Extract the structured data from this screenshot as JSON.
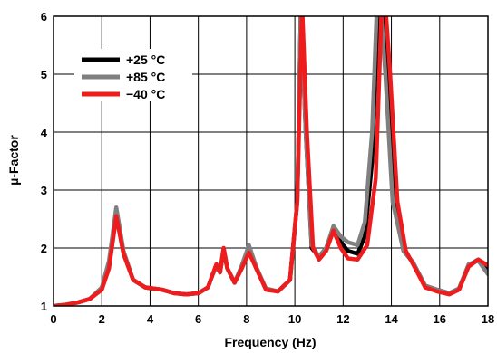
{
  "chart_data": {
    "type": "line",
    "title": "",
    "xlabel": "Frequency (Hz)",
    "ylabel": "µ-Factor",
    "xlim": [
      0,
      18
    ],
    "ylim": [
      1,
      6
    ],
    "xticks": [
      0,
      2,
      4,
      6,
      8,
      10,
      12,
      14,
      16,
      18
    ],
    "yticks": [
      1,
      2,
      3,
      4,
      5,
      6
    ],
    "xtick_labels": [
      "0",
      "2",
      "4",
      "6",
      "8",
      "10",
      "12",
      "14",
      "16",
      "18"
    ],
    "ytick_labels": [
      "1",
      "2",
      "3",
      "4",
      "5",
      "6"
    ],
    "grid": true,
    "legend_position": "top-left",
    "series": [
      {
        "name": "+25 °C",
        "color": "#000000",
        "points": [
          [
            0,
            1.0
          ],
          [
            0.5,
            1.02
          ],
          [
            1.0,
            1.06
          ],
          [
            1.5,
            1.12
          ],
          [
            2.0,
            1.3
          ],
          [
            2.3,
            1.7
          ],
          [
            2.6,
            2.6
          ],
          [
            2.9,
            1.9
          ],
          [
            3.3,
            1.45
          ],
          [
            3.8,
            1.32
          ],
          [
            4.5,
            1.28
          ],
          [
            5.0,
            1.22
          ],
          [
            5.5,
            1.2
          ],
          [
            6.0,
            1.22
          ],
          [
            6.4,
            1.32
          ],
          [
            6.6,
            1.55
          ],
          [
            6.75,
            1.68
          ],
          [
            6.9,
            1.58
          ],
          [
            7.05,
            1.95
          ],
          [
            7.2,
            1.65
          ],
          [
            7.5,
            1.4
          ],
          [
            7.8,
            1.65
          ],
          [
            8.1,
            1.98
          ],
          [
            8.4,
            1.65
          ],
          [
            8.8,
            1.3
          ],
          [
            9.3,
            1.25
          ],
          [
            9.8,
            1.45
          ],
          [
            10.1,
            2.8
          ],
          [
            10.25,
            6.2
          ],
          [
            10.45,
            4.0
          ],
          [
            10.7,
            2.0
          ],
          [
            11.0,
            1.85
          ],
          [
            11.3,
            2.0
          ],
          [
            11.6,
            2.35
          ],
          [
            11.9,
            2.1
          ],
          [
            12.2,
            1.95
          ],
          [
            12.6,
            1.9
          ],
          [
            12.9,
            2.2
          ],
          [
            13.2,
            3.5
          ],
          [
            13.45,
            6.2
          ],
          [
            13.6,
            6.2
          ],
          [
            13.8,
            5.0
          ],
          [
            14.1,
            2.8
          ],
          [
            14.5,
            1.95
          ],
          [
            14.9,
            1.75
          ],
          [
            15.4,
            1.35
          ],
          [
            15.9,
            1.28
          ],
          [
            16.4,
            1.22
          ],
          [
            16.8,
            1.3
          ],
          [
            17.2,
            1.7
          ],
          [
            17.6,
            1.8
          ],
          [
            18.0,
            1.62
          ]
        ]
      },
      {
        "name": "+85 °C",
        "color": "#808080",
        "points": [
          [
            0,
            1.0
          ],
          [
            0.5,
            1.02
          ],
          [
            1.0,
            1.06
          ],
          [
            1.5,
            1.12
          ],
          [
            2.0,
            1.32
          ],
          [
            2.3,
            1.78
          ],
          [
            2.6,
            2.7
          ],
          [
            2.9,
            1.95
          ],
          [
            3.3,
            1.45
          ],
          [
            3.8,
            1.32
          ],
          [
            4.5,
            1.28
          ],
          [
            5.0,
            1.22
          ],
          [
            5.5,
            1.2
          ],
          [
            6.0,
            1.22
          ],
          [
            6.4,
            1.32
          ],
          [
            6.6,
            1.55
          ],
          [
            6.75,
            1.68
          ],
          [
            6.9,
            1.58
          ],
          [
            7.05,
            2.0
          ],
          [
            7.2,
            1.65
          ],
          [
            7.5,
            1.4
          ],
          [
            7.8,
            1.7
          ],
          [
            8.1,
            2.05
          ],
          [
            8.4,
            1.68
          ],
          [
            8.8,
            1.3
          ],
          [
            9.3,
            1.25
          ],
          [
            9.8,
            1.45
          ],
          [
            10.1,
            2.8
          ],
          [
            10.25,
            6.2
          ],
          [
            10.45,
            4.0
          ],
          [
            10.7,
            2.05
          ],
          [
            11.0,
            1.85
          ],
          [
            11.3,
            2.0
          ],
          [
            11.6,
            2.38
          ],
          [
            11.9,
            2.2
          ],
          [
            12.2,
            2.1
          ],
          [
            12.6,
            2.05
          ],
          [
            12.9,
            2.45
          ],
          [
            13.2,
            4.0
          ],
          [
            13.4,
            6.2
          ],
          [
            13.55,
            6.2
          ],
          [
            13.75,
            5.0
          ],
          [
            14.05,
            2.8
          ],
          [
            14.5,
            1.95
          ],
          [
            14.9,
            1.75
          ],
          [
            15.4,
            1.35
          ],
          [
            15.9,
            1.28
          ],
          [
            16.4,
            1.22
          ],
          [
            16.8,
            1.3
          ],
          [
            17.2,
            1.72
          ],
          [
            17.6,
            1.78
          ],
          [
            18.0,
            1.55
          ]
        ]
      },
      {
        "name": "−40 °C",
        "color": "#ee1c1c",
        "points": [
          [
            0,
            1.0
          ],
          [
            0.5,
            1.02
          ],
          [
            1.0,
            1.06
          ],
          [
            1.5,
            1.12
          ],
          [
            2.0,
            1.28
          ],
          [
            2.3,
            1.65
          ],
          [
            2.6,
            2.55
          ],
          [
            2.9,
            1.9
          ],
          [
            3.3,
            1.45
          ],
          [
            3.8,
            1.32
          ],
          [
            4.5,
            1.28
          ],
          [
            5.0,
            1.22
          ],
          [
            5.5,
            1.2
          ],
          [
            6.0,
            1.22
          ],
          [
            6.4,
            1.32
          ],
          [
            6.6,
            1.55
          ],
          [
            6.75,
            1.72
          ],
          [
            6.9,
            1.58
          ],
          [
            7.05,
            2.0
          ],
          [
            7.2,
            1.65
          ],
          [
            7.5,
            1.4
          ],
          [
            7.8,
            1.65
          ],
          [
            8.1,
            1.92
          ],
          [
            8.4,
            1.65
          ],
          [
            8.8,
            1.28
          ],
          [
            9.3,
            1.25
          ],
          [
            9.8,
            1.45
          ],
          [
            10.1,
            2.8
          ],
          [
            10.3,
            6.2
          ],
          [
            10.5,
            4.0
          ],
          [
            10.75,
            2.0
          ],
          [
            11.0,
            1.8
          ],
          [
            11.3,
            1.95
          ],
          [
            11.6,
            2.3
          ],
          [
            11.9,
            2.0
          ],
          [
            12.2,
            1.82
          ],
          [
            12.6,
            1.8
          ],
          [
            13.0,
            2.05
          ],
          [
            13.35,
            3.2
          ],
          [
            13.6,
            6.2
          ],
          [
            13.75,
            6.2
          ],
          [
            13.95,
            5.0
          ],
          [
            14.25,
            2.8
          ],
          [
            14.6,
            1.95
          ],
          [
            14.9,
            1.72
          ],
          [
            15.4,
            1.32
          ],
          [
            15.9,
            1.25
          ],
          [
            16.4,
            1.2
          ],
          [
            16.8,
            1.28
          ],
          [
            17.2,
            1.68
          ],
          [
            17.6,
            1.8
          ],
          [
            18.0,
            1.7
          ]
        ]
      }
    ]
  }
}
